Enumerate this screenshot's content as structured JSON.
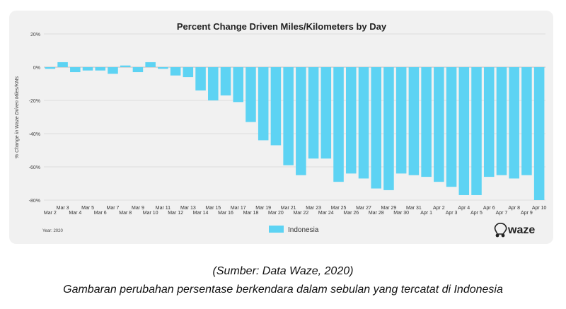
{
  "chart_data": {
    "type": "bar",
    "title": "Percent Change Driven Miles/Kilometers by Day",
    "ylabel": "% Change in Waze Driven Miles/KMs",
    "ylim": [
      -80,
      20
    ],
    "yticks": [
      20,
      0,
      -20,
      -40,
      -60,
      -80
    ],
    "ytick_labels": [
      "20%",
      "0%",
      "-20%",
      "-40%",
      "-60%",
      "-80%"
    ],
    "grid": true,
    "legend_position": "bottom-center",
    "categories": [
      "Mar 2",
      "Mar 3",
      "Mar 4",
      "Mar 5",
      "Mar 6",
      "Mar 7",
      "Mar 8",
      "Mar 9",
      "Mar 10",
      "Mar 11",
      "Mar 12",
      "Mar 13",
      "Mar 14",
      "Mar 15",
      "Mar 16",
      "Mar 17",
      "Mar 18",
      "Mar 19",
      "Mar 20",
      "Mar 21",
      "Mar 22",
      "Mar 23",
      "Mar 24",
      "Mar 25",
      "Mar 26",
      "Mar 27",
      "Mar 28",
      "Mar 29",
      "Mar 30",
      "Mar 31",
      "Apr 1",
      "Apr 2",
      "Apr 3",
      "Apr 4",
      "Apr 5",
      "Apr 6",
      "Apr 7",
      "Apr 8",
      "Apr 9",
      "Apr 10"
    ],
    "series": [
      {
        "name": "Indonesia",
        "color": "#5dd3f3",
        "values": [
          -1,
          3,
          -3,
          -2,
          -2,
          -4,
          1,
          -3,
          3,
          -1,
          -5,
          -6,
          -14,
          -20,
          -17,
          -21,
          -33,
          -44,
          -47,
          -59,
          -65,
          -55,
          -55,
          -69,
          -64,
          -67,
          -73,
          -74,
          -64,
          -65,
          -66,
          -69,
          -72,
          -77,
          -77,
          -66,
          -65,
          -67,
          -65,
          -80
        ]
      }
    ]
  },
  "footnote": "Year: 2020",
  "brand": "waze",
  "captions": {
    "source": "(Sumber: Data Waze, 2020)",
    "description": "Gambaran perubahan persentase berkendara dalam sebulan yang tercatat di Indonesia"
  }
}
